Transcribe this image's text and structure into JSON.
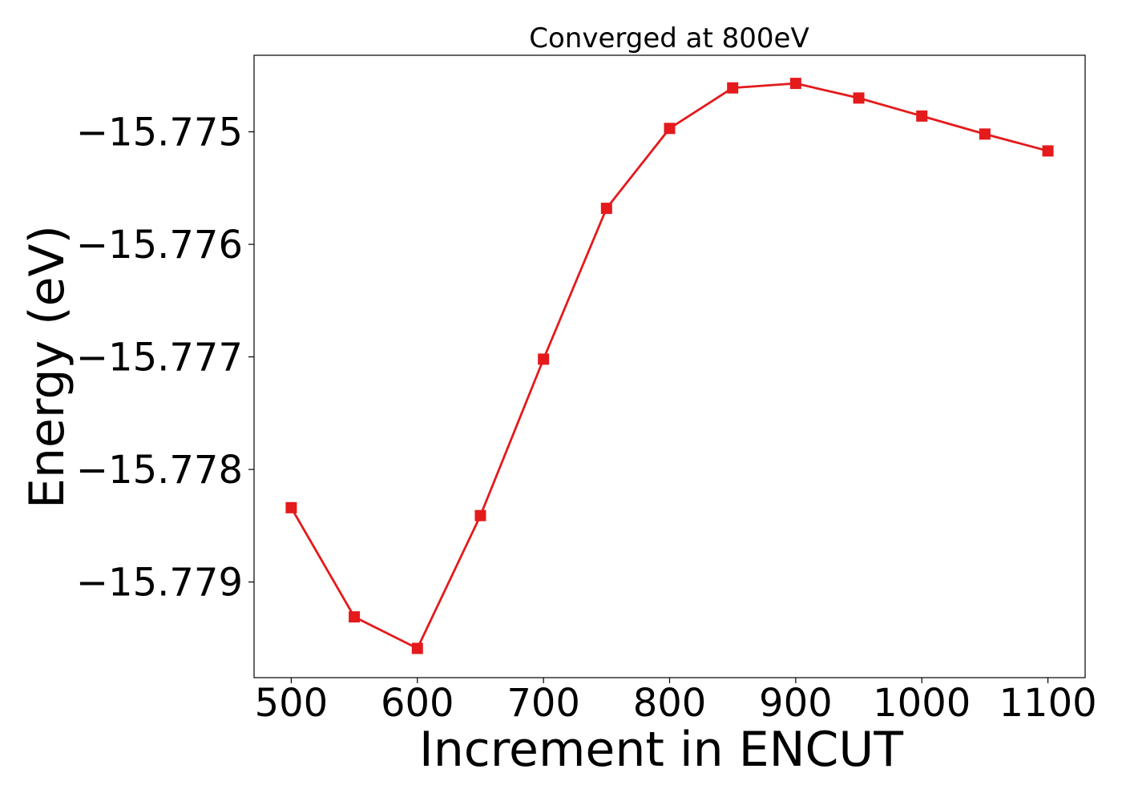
{
  "chart_data": {
    "type": "line",
    "title": "Converged at 800eV",
    "xlabel": "Increment in ENCUT",
    "ylabel": "Energy (eV)",
    "x": [
      500,
      550,
      600,
      650,
      700,
      750,
      800,
      850,
      900,
      950,
      1000,
      1050,
      1100
    ],
    "series": [
      {
        "color": "#e41a1c",
        "marker": "square",
        "values": [
          -15.77834,
          -15.77931,
          -15.77959,
          -15.77841,
          -15.77702,
          -15.77568,
          -15.77497,
          -15.77461,
          -15.77457,
          -15.7747,
          -15.77486,
          -15.77502,
          -15.77517
        ]
      }
    ],
    "xticks": [
      500,
      600,
      700,
      800,
      900,
      1000,
      1100
    ],
    "xtick_labels": [
      "500",
      "600",
      "700",
      "800",
      "900",
      "1000",
      "1100"
    ],
    "yticks": [
      -15.775,
      -15.776,
      -15.777,
      -15.778,
      -15.779
    ],
    "ytick_labels": [
      "−15.775",
      "−15.776",
      "−15.777",
      "−15.778",
      "−15.779"
    ],
    "xlim": [
      470.5,
      1129.5
    ],
    "ylim": [
      -15.77985,
      -15.77432
    ],
    "grid": false,
    "legend": "none"
  }
}
